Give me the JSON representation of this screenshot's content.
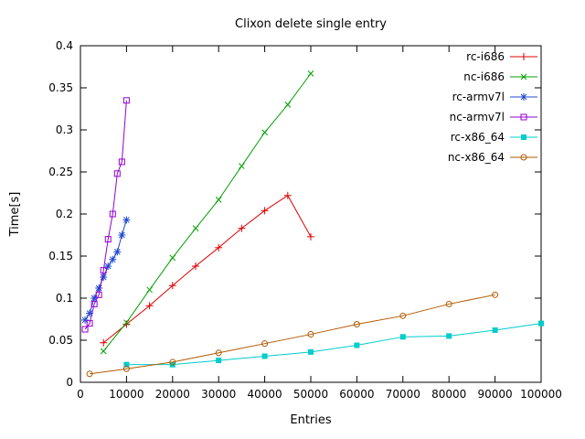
{
  "chart_data": {
    "type": "line",
    "title": "Clixon delete single entry",
    "xlabel": "Entries",
    "ylabel": "Time[s]",
    "xlim": [
      0,
      100000
    ],
    "ylim": [
      0,
      0.4
    ],
    "x_ticks": [
      0,
      10000,
      20000,
      30000,
      40000,
      50000,
      60000,
      70000,
      80000,
      90000,
      100000
    ],
    "y_ticks": [
      0,
      0.05,
      0.1,
      0.15,
      0.2,
      0.25,
      0.3,
      0.35,
      0.4
    ],
    "grid": false,
    "legend_position": "top-right-inside",
    "background": "#ffffff",
    "axis_color": "#000000",
    "series": [
      {
        "name": "rc-i686",
        "color": "#e00000",
        "marker": "plus",
        "x": [
          5000,
          10000,
          15000,
          20000,
          25000,
          30000,
          35000,
          40000,
          45000,
          50000
        ],
        "y": [
          0.047,
          0.069,
          0.091,
          0.115,
          0.138,
          0.16,
          0.183,
          0.204,
          0.222,
          0.173
        ]
      },
      {
        "name": "nc-i686",
        "color": "#00a000",
        "marker": "cross",
        "x": [
          5000,
          10000,
          15000,
          20000,
          25000,
          30000,
          35000,
          40000,
          45000,
          50000
        ],
        "y": [
          0.037,
          0.071,
          0.11,
          0.148,
          0.183,
          0.217,
          0.257,
          0.297,
          0.33,
          0.367
        ]
      },
      {
        "name": "rc-armv7l",
        "color": "#2048d0",
        "marker": "asterisk",
        "x": [
          1000,
          2000,
          3000,
          4000,
          5000,
          6000,
          7000,
          8000,
          9000,
          10000
        ],
        "y": [
          0.074,
          0.082,
          0.1,
          0.112,
          0.125,
          0.138,
          0.146,
          0.155,
          0.175,
          0.193
        ]
      },
      {
        "name": "nc-armv7l",
        "color": "#9400d3",
        "marker": "square-open",
        "x": [
          1000,
          2000,
          3000,
          4000,
          5000,
          6000,
          7000,
          8000,
          9000,
          10000
        ],
        "y": [
          0.063,
          0.07,
          0.093,
          0.104,
          0.133,
          0.17,
          0.2,
          0.248,
          0.262,
          0.335
        ]
      },
      {
        "name": "rc-x86_64",
        "color": "#00cccc",
        "marker": "square-filled",
        "x": [
          10000,
          20000,
          30000,
          40000,
          50000,
          60000,
          70000,
          80000,
          90000,
          100000
        ],
        "y": [
          0.021,
          0.021,
          0.026,
          0.031,
          0.036,
          0.044,
          0.054,
          0.055,
          0.062,
          0.07
        ]
      },
      {
        "name": "nc-x86_64",
        "color": "#b25900",
        "marker": "circle-open",
        "x": [
          2000,
          10000,
          20000,
          30000,
          40000,
          50000,
          60000,
          70000,
          80000,
          90000
        ],
        "y": [
          0.01,
          0.016,
          0.024,
          0.035,
          0.046,
          0.057,
          0.069,
          0.079,
          0.093,
          0.104
        ]
      }
    ]
  }
}
